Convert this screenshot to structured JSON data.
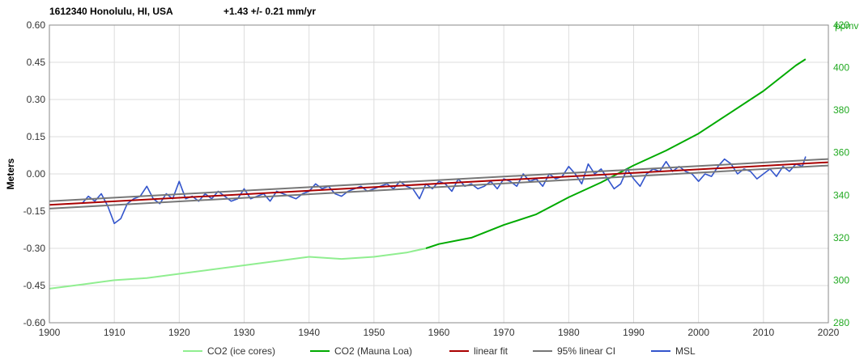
{
  "chart_data": {
    "type": "line",
    "title": "1612340 Honolulu, HI, USA",
    "subtitle": "+1.43 +/- 0.21 mm/yr",
    "ylabel": "Meters",
    "y2label": "ppmv",
    "xlim": [
      1900,
      2020
    ],
    "ylim": [
      -0.6,
      0.6
    ],
    "y2lim": [
      280,
      420
    ],
    "xticks": [
      "1900",
      "1910",
      "1920",
      "1930",
      "1940",
      "1950",
      "1960",
      "1970",
      "1980",
      "1990",
      "2000",
      "2010",
      "2020"
    ],
    "yticks": [
      "0.60",
      "0.45",
      "0.30",
      "0.15",
      "0.00",
      "-0.15",
      "-0.30",
      "-0.45",
      "-0.60"
    ],
    "y2ticks": [
      "420",
      "400",
      "380",
      "360",
      "340",
      "320",
      "300",
      "280"
    ],
    "grid": true,
    "legend_position": "bottom",
    "series": [
      {
        "name": "CO2 (ice cores)",
        "color": "#90ee90",
        "axis": "right",
        "x": [
          1900,
          1905,
          1910,
          1915,
          1920,
          1925,
          1930,
          1935,
          1940,
          1945,
          1950,
          1955,
          1958
        ],
        "y": [
          296,
          298,
          300,
          301,
          303,
          305,
          307,
          309,
          311,
          310,
          311,
          313,
          315
        ]
      },
      {
        "name": "CO2 (Mauna Loa)",
        "color": "#00aa00",
        "axis": "right",
        "x": [
          1958,
          1960,
          1965,
          1970,
          1975,
          1980,
          1985,
          1990,
          1995,
          2000,
          2005,
          2010,
          2015,
          2016.5
        ],
        "y": [
          315,
          317,
          320,
          326,
          331,
          339,
          346,
          354,
          361,
          369,
          379,
          389,
          401,
          404
        ]
      },
      {
        "name": "linear fit",
        "color": "#aa0000",
        "axis": "left",
        "x": [
          1900,
          2020
        ],
        "y": [
          -0.125,
          0.047
        ]
      },
      {
        "name": "95% linear CI",
        "color": "#777777",
        "axis": "left",
        "x": [
          1900,
          2020
        ],
        "y": [
          -0.11,
          0.06
        ],
        "lower": {
          "x": [
            1900,
            2020
          ],
          "y": [
            -0.14,
            0.034
          ]
        }
      },
      {
        "name": "MSL",
        "color": "#3355cc",
        "axis": "left",
        "x": [
          1905,
          1906,
          1907,
          1908,
          1909,
          1910,
          1911,
          1912,
          1913,
          1914,
          1915,
          1916,
          1917,
          1918,
          1919,
          1920,
          1921,
          1922,
          1923,
          1924,
          1925,
          1926,
          1927,
          1928,
          1929,
          1930,
          1931,
          1932,
          1933,
          1934,
          1935,
          1936,
          1937,
          1938,
          1939,
          1940,
          1941,
          1942,
          1943,
          1944,
          1945,
          1946,
          1947,
          1948,
          1949,
          1950,
          1951,
          1952,
          1953,
          1954,
          1955,
          1956,
          1957,
          1958,
          1959,
          1960,
          1961,
          1962,
          1963,
          1964,
          1965,
          1966,
          1967,
          1968,
          1969,
          1970,
          1971,
          1972,
          1973,
          1974,
          1975,
          1976,
          1977,
          1978,
          1979,
          1980,
          1981,
          1982,
          1983,
          1984,
          1985,
          1986,
          1987,
          1988,
          1989,
          1990,
          1991,
          1992,
          1993,
          1994,
          1995,
          1996,
          1997,
          1998,
          1999,
          2000,
          2001,
          2002,
          2003,
          2004,
          2005,
          2006,
          2007,
          2008,
          2009,
          2010,
          2011,
          2012,
          2013,
          2014,
          2015,
          2016,
          2016.5
        ],
        "y": [
          -0.12,
          -0.09,
          -0.11,
          -0.08,
          -0.13,
          -0.2,
          -0.18,
          -0.12,
          -0.1,
          -0.09,
          -0.05,
          -0.1,
          -0.12,
          -0.08,
          -0.1,
          -0.03,
          -0.1,
          -0.09,
          -0.11,
          -0.08,
          -0.1,
          -0.07,
          -0.09,
          -0.11,
          -0.1,
          -0.06,
          -0.1,
          -0.09,
          -0.08,
          -0.11,
          -0.07,
          -0.08,
          -0.09,
          -0.1,
          -0.08,
          -0.07,
          -0.04,
          -0.06,
          -0.05,
          -0.08,
          -0.09,
          -0.07,
          -0.06,
          -0.05,
          -0.07,
          -0.06,
          -0.05,
          -0.04,
          -0.06,
          -0.03,
          -0.05,
          -0.06,
          -0.1,
          -0.04,
          -0.06,
          -0.03,
          -0.04,
          -0.07,
          -0.02,
          -0.05,
          -0.04,
          -0.06,
          -0.05,
          -0.03,
          -0.06,
          -0.02,
          -0.03,
          -0.05,
          0.0,
          -0.03,
          -0.02,
          -0.05,
          0.0,
          -0.02,
          -0.01,
          0.03,
          0.0,
          -0.04,
          0.04,
          0.0,
          0.02,
          -0.02,
          -0.06,
          -0.04,
          0.02,
          -0.02,
          -0.05,
          0.0,
          0.02,
          0.01,
          0.05,
          0.01,
          0.03,
          0.01,
          0.0,
          -0.03,
          0.0,
          -0.01,
          0.03,
          0.06,
          0.04,
          0.0,
          0.02,
          0.01,
          -0.02,
          0.0,
          0.02,
          -0.01,
          0.03,
          0.01,
          0.04,
          0.03,
          0.07
        ]
      }
    ]
  }
}
